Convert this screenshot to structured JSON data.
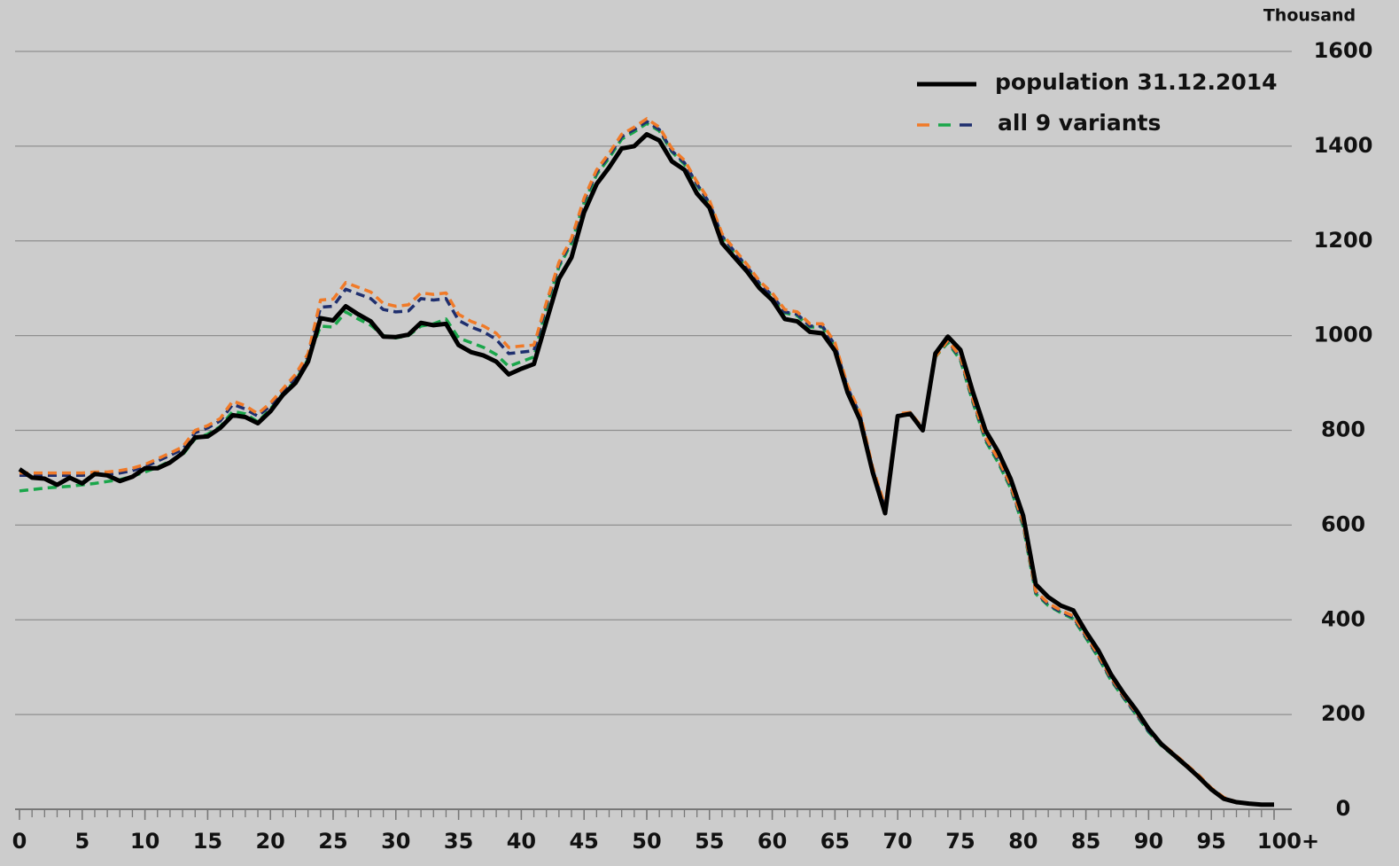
{
  "chart_data": {
    "type": "line",
    "unit_label": "Thousand",
    "x": [
      0,
      1,
      2,
      3,
      4,
      5,
      6,
      7,
      8,
      9,
      10,
      11,
      12,
      13,
      14,
      15,
      16,
      17,
      18,
      19,
      20,
      21,
      22,
      23,
      24,
      25,
      26,
      27,
      28,
      29,
      30,
      31,
      32,
      33,
      34,
      35,
      36,
      37,
      38,
      39,
      40,
      41,
      42,
      43,
      44,
      45,
      46,
      47,
      48,
      49,
      50,
      51,
      52,
      53,
      54,
      55,
      56,
      57,
      58,
      59,
      60,
      61,
      62,
      63,
      64,
      65,
      66,
      67,
      68,
      69,
      70,
      71,
      72,
      73,
      74,
      75,
      76,
      77,
      78,
      79,
      80,
      81,
      82,
      83,
      84,
      85,
      86,
      87,
      88,
      89,
      90,
      91,
      92,
      93,
      94,
      95,
      96,
      97,
      98,
      99,
      100
    ],
    "xlim": [
      0,
      100
    ],
    "xticks": [
      0,
      5,
      10,
      15,
      20,
      25,
      30,
      35,
      40,
      45,
      50,
      55,
      60,
      65,
      70,
      75,
      80,
      85,
      90,
      95,
      {
        "value": 100,
        "label": "100+"
      }
    ],
    "ylim": [
      0,
      1600
    ],
    "yticks": [
      0,
      200,
      400,
      600,
      800,
      1000,
      1200,
      1400,
      1600
    ],
    "grid": true,
    "variants_legend": {
      "label": "all 9 variants"
    },
    "series": [
      {
        "name": "population 31.12.2014",
        "color": "#000000",
        "values": [
          718,
          700,
          698,
          685,
          700,
          688,
          708,
          705,
          693,
          702,
          720,
          720,
          732,
          752,
          785,
          787,
          805,
          832,
          828,
          815,
          840,
          875,
          900,
          945,
          1037,
          1032,
          1062,
          1045,
          1030,
          998,
          997,
          1002,
          1027,
          1022,
          1025,
          980,
          965,
          958,
          945,
          918,
          930,
          940,
          1030,
          1120,
          1165,
          1260,
          1320,
          1355,
          1395,
          1400,
          1425,
          1412,
          1368,
          1350,
          1300,
          1270,
          1195,
          1165,
          1135,
          1100,
          1075,
          1035,
          1030,
          1008,
          1005,
          968,
          880,
          822,
          712,
          625,
          830,
          835,
          800,
          962,
          998,
          970,
          880,
          800,
          755,
          698,
          620,
          475,
          448,
          430,
          420,
          375,
          335,
          285,
          245,
          210,
          170,
          138,
          115,
          92,
          68,
          42,
          22,
          15,
          12,
          10,
          10
        ]
      },
      {
        "color": "#f07a28",
        "values": [
          710,
          710,
          710,
          710,
          710,
          710,
          712,
          712,
          715,
          720,
          728,
          740,
          752,
          765,
          800,
          810,
          825,
          862,
          852,
          835,
          858,
          888,
          918,
          962,
          1075,
          1077,
          1112,
          1102,
          1092,
          1068,
          1062,
          1065,
          1090,
          1087,
          1090,
          1045,
          1030,
          1020,
          1005,
          975,
          978,
          980,
          1070,
          1155,
          1205,
          1290,
          1350,
          1385,
          1425,
          1440,
          1458,
          1440,
          1395,
          1370,
          1325,
          1285,
          1215,
          1182,
          1150,
          1115,
          1090,
          1055,
          1050,
          1025,
          1025,
          985,
          895,
          838,
          722,
          640,
          835,
          838,
          805,
          955,
          990,
          955,
          865,
          785,
          740,
          685,
          605,
          460,
          435,
          420,
          408,
          368,
          325,
          278,
          240,
          205,
          168,
          140,
          118,
          95,
          72,
          45,
          25,
          16,
          12,
          10,
          10
        ]
      },
      {
        "color": "#1f2f6e",
        "values": [
          705,
          705,
          705,
          705,
          705,
          705,
          707,
          707,
          710,
          715,
          723,
          735,
          747,
          760,
          795,
          805,
          820,
          855,
          845,
          830,
          852,
          882,
          912,
          955,
          1060,
          1062,
          1098,
          1088,
          1078,
          1055,
          1050,
          1052,
          1078,
          1075,
          1078,
          1032,
          1018,
          1008,
          992,
          962,
          965,
          968,
          1065,
          1150,
          1200,
          1285,
          1345,
          1380,
          1420,
          1435,
          1452,
          1435,
          1390,
          1365,
          1320,
          1280,
          1210,
          1177,
          1145,
          1110,
          1085,
          1050,
          1045,
          1020,
          1020,
          980,
          890,
          833,
          717,
          635,
          832,
          835,
          802,
          958,
          988,
          952,
          862,
          782,
          737,
          682,
          602,
          458,
          432,
          417,
          405,
          365,
          322,
          275,
          237,
          202,
          165,
          137,
          115,
          92,
          70,
          43,
          23,
          15,
          11,
          10,
          10
        ]
      },
      {
        "color": "#1aa64a",
        "values": [
          672,
          675,
          678,
          680,
          682,
          685,
          688,
          692,
          696,
          703,
          712,
          722,
          735,
          748,
          782,
          792,
          808,
          840,
          835,
          818,
          845,
          878,
          905,
          950,
          1020,
          1018,
          1050,
          1035,
          1022,
          1000,
          995,
          1000,
          1020,
          1025,
          1035,
          995,
          985,
          975,
          960,
          935,
          945,
          955,
          1060,
          1145,
          1195,
          1280,
          1340,
          1375,
          1415,
          1430,
          1448,
          1432,
          1388,
          1362,
          1318,
          1278,
          1208,
          1175,
          1142,
          1108,
          1082,
          1048,
          1042,
          1018,
          1018,
          978,
          888,
          830,
          715,
          632,
          830,
          833,
          800,
          955,
          985,
          948,
          858,
          778,
          732,
          678,
          598,
          455,
          430,
          415,
          402,
          362,
          320,
          272,
          235,
          200,
          163,
          135,
          113,
          90,
          68,
          42,
          22,
          14,
          11,
          10,
          10
        ]
      }
    ]
  }
}
